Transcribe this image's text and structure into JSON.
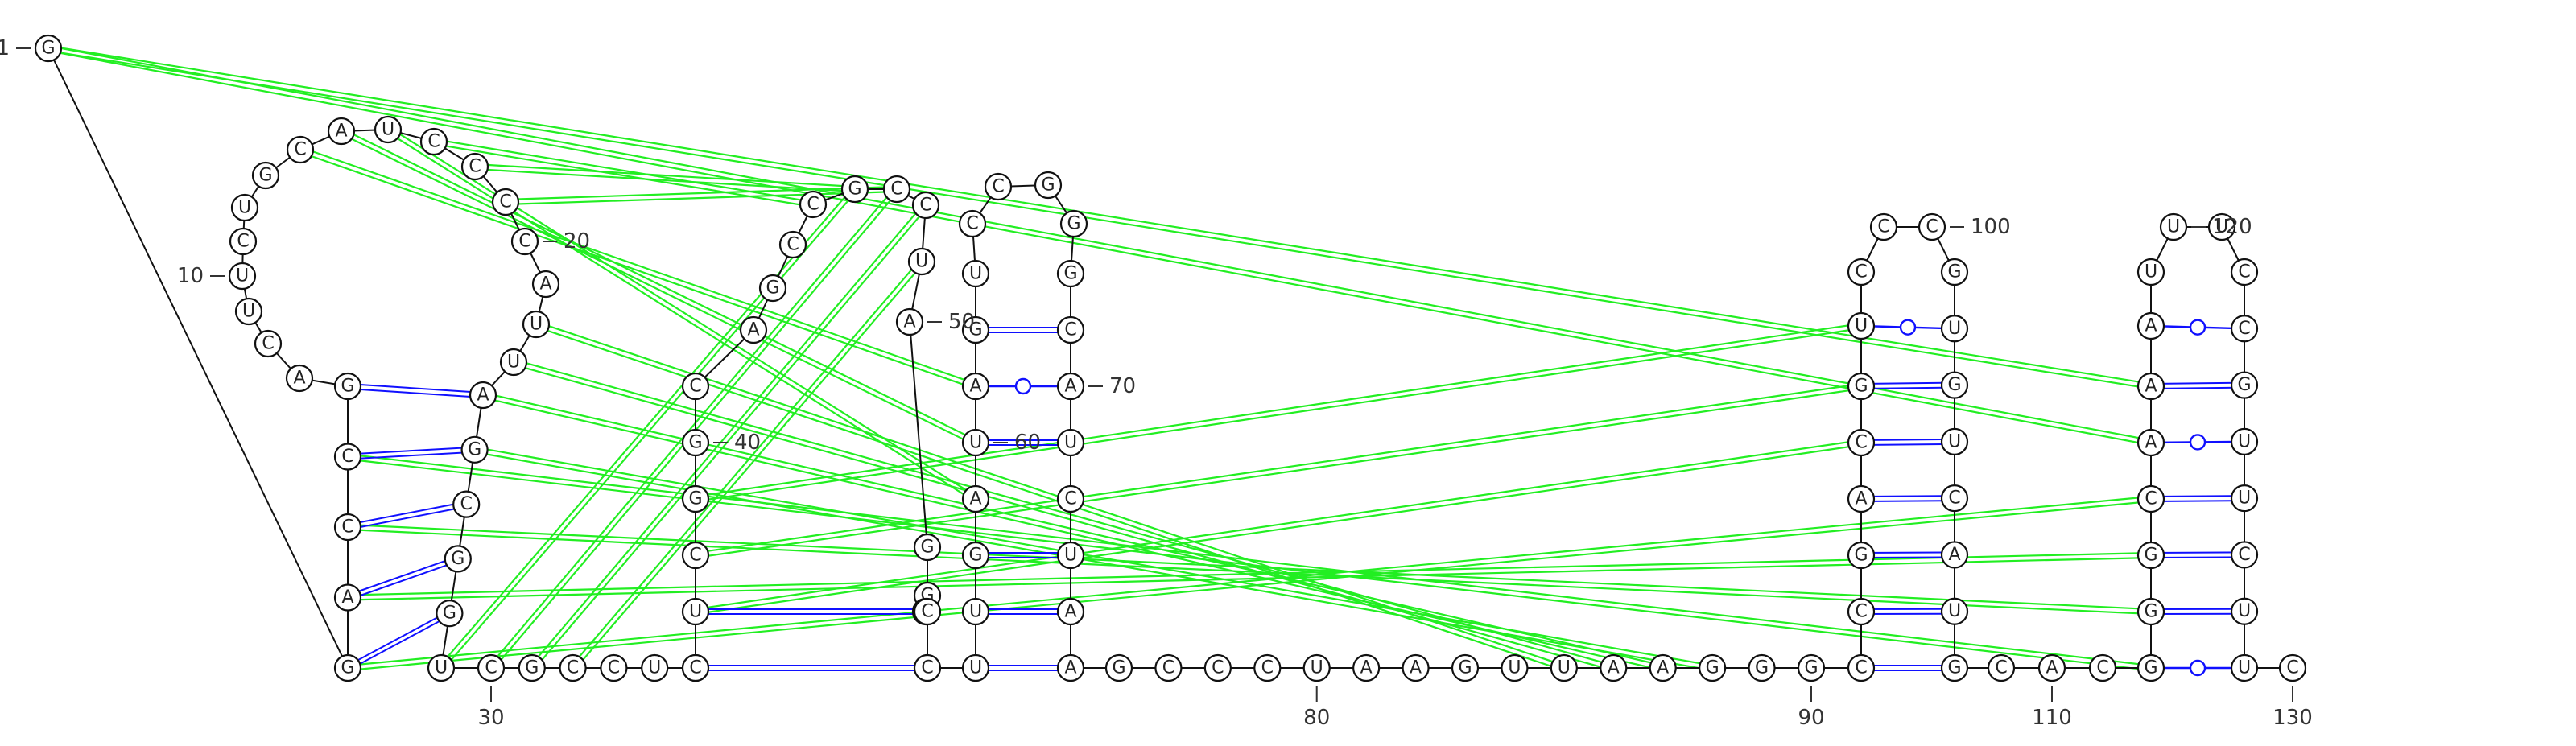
{
  "colors": {
    "backbone": "#111111",
    "canonical_pair": "#1010ff",
    "wobble_pair": "#1010ff",
    "pseudoknot_interaction": "#22ee22",
    "nucleotide_outline": "#111111",
    "label": "#333333"
  },
  "diagram": {
    "type": "RNA secondary structure",
    "sequence": "GGACCGACUUCUGCAUCCCCAUUAGCGGUCGCCUCCUCGGCAGCCGCCUAGGACCUUGAUAGUCCGGGCAUCUAAGCCCUAAGUUAAGGGCCGACGUCCCGUGUCAUGCACGGGCAAAUUUCCGUUCUUC",
    "index_labels": [
      "1",
      "10",
      "20",
      "30",
      "40",
      "50",
      "60",
      "70",
      "80",
      "90",
      "100",
      "110",
      "120",
      "130"
    ]
  }
}
